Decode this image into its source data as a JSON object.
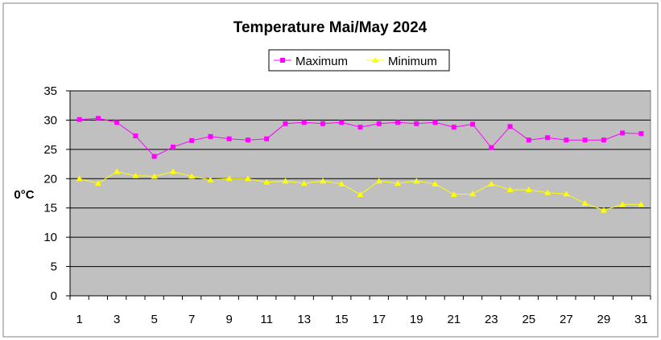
{
  "chart_data": {
    "type": "line",
    "title": "Temperature Mai/May 2024",
    "ylabel": "0°C",
    "xlabel": "",
    "ylim": [
      0,
      35
    ],
    "ytick_step": 5,
    "grid": true,
    "legend_position": "top-center",
    "x": [
      1,
      2,
      3,
      4,
      5,
      6,
      7,
      8,
      9,
      10,
      11,
      12,
      13,
      14,
      15,
      16,
      17,
      18,
      19,
      20,
      21,
      22,
      23,
      24,
      25,
      26,
      27,
      28,
      29,
      30,
      31
    ],
    "x_tick_labels": [
      "1",
      "3",
      "5",
      "7",
      "9",
      "11",
      "13",
      "15",
      "17",
      "19",
      "21",
      "23",
      "25",
      "27",
      "29",
      "31"
    ],
    "series": [
      {
        "name": "Maximum",
        "color": "#ff00ff",
        "marker": "square",
        "values": [
          30.1,
          30.3,
          29.6,
          27.3,
          23.8,
          25.4,
          26.5,
          27.2,
          26.8,
          26.6,
          26.8,
          29.4,
          29.6,
          29.4,
          29.6,
          28.8,
          29.4,
          29.6,
          29.4,
          29.6,
          28.8,
          29.3,
          25.3,
          28.9,
          26.6,
          27.0,
          26.6,
          26.6,
          26.6,
          27.8,
          27.7
        ]
      },
      {
        "name": "Minimum",
        "color": "#ffff00",
        "marker": "triangle",
        "values": [
          20.0,
          19.2,
          21.2,
          20.5,
          20.4,
          21.2,
          20.4,
          19.8,
          20.0,
          20.0,
          19.4,
          19.6,
          19.2,
          19.6,
          19.1,
          17.3,
          19.6,
          19.2,
          19.6,
          19.1,
          17.3,
          17.4,
          19.1,
          18.1,
          18.1,
          17.6,
          17.4,
          15.8,
          14.6,
          15.6,
          15.6
        ]
      }
    ],
    "colors": {
      "plot_background": "#c0c0c0",
      "gridline": "#000000",
      "frame": "#808080"
    }
  }
}
